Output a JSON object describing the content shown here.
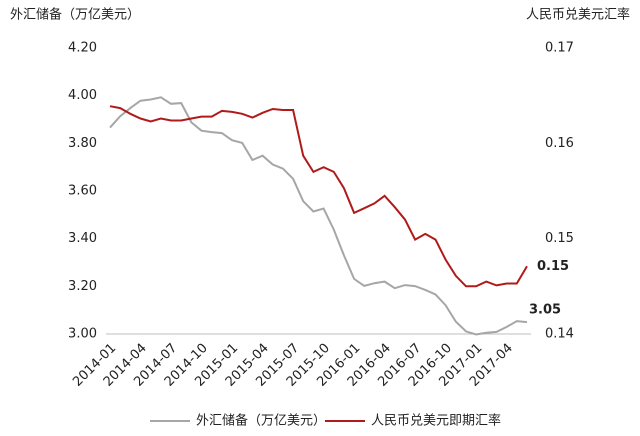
{
  "chart_data": {
    "type": "line",
    "y_label": "外汇储备（万亿美元）",
    "y2_label": "人民币兑美元汇率",
    "categories": [
      "2014-01",
      null,
      null,
      "2014-04",
      null,
      null,
      "2014-07",
      null,
      null,
      "2014-10",
      null,
      null,
      "2015-01",
      null,
      null,
      "2015-04",
      null,
      null,
      "2015-07",
      null,
      null,
      "2015-10",
      null,
      null,
      "2016-01",
      null,
      null,
      "2016-04",
      null,
      null,
      "2016-07",
      null,
      null,
      "2016-10",
      null,
      null,
      "2017-01",
      null,
      null,
      "2017-04",
      null,
      null
    ],
    "ylim": [
      3,
      4.2
    ],
    "yticks": [
      {
        "value": 3,
        "label": "3.00"
      },
      {
        "value": 3.2,
        "label": "3.20"
      },
      {
        "value": 3.4,
        "label": "3.40"
      },
      {
        "value": 3.6,
        "label": "3.60"
      },
      {
        "value": 3.8,
        "label": "3.80"
      },
      {
        "value": 4,
        "label": "4.00"
      },
      {
        "value": 4.2,
        "label": "4.20"
      }
    ],
    "y2lim": [
      0.14,
      0.17
    ],
    "y2ticks": [
      0.14,
      0.15,
      0.16,
      0.17
    ],
    "series": [
      {
        "name": "外汇储备（万亿美元）",
        "color": "#a6a6a6",
        "values": [
          3.866,
          3.914,
          3.948,
          3.979,
          3.984,
          3.993,
          3.966,
          3.969,
          3.888,
          3.853,
          3.847,
          3.843,
          3.813,
          3.802,
          3.73,
          3.748,
          3.711,
          3.694,
          3.651,
          3.557,
          3.514,
          3.526,
          3.438,
          3.33,
          3.231,
          3.202,
          3.213,
          3.22,
          3.192,
          3.205,
          3.201,
          3.185,
          3.166,
          3.121,
          3.052,
          3.011,
          2.998,
          3.005,
          3.009,
          3.03,
          3.054,
          3.05
        ]
      },
      {
        "name": "人民币兑美元即期汇率",
        "color": "#b01a1a",
        "axis": "y2",
        "values": [
          0.1639,
          0.1637,
          0.1631,
          0.1626,
          0.1623,
          0.1626,
          0.1624,
          0.1624,
          0.1626,
          0.1628,
          0.1628,
          0.1634,
          0.1633,
          0.1631,
          0.1627,
          0.1632,
          0.1636,
          0.1635,
          0.1635,
          0.1587,
          0.157,
          0.1575,
          0.157,
          0.1553,
          0.1527,
          0.1532,
          0.1537,
          0.1545,
          0.1533,
          0.152,
          0.1499,
          0.1505,
          0.1499,
          0.1478,
          0.1461,
          0.145,
          0.145,
          0.1455,
          0.1451,
          0.1453,
          0.1453,
          0.1471
        ],
        "value_labels": [
          null,
          null,
          null,
          null,
          null,
          null,
          null,
          null,
          null,
          null,
          null,
          null,
          null,
          null,
          null,
          null,
          null,
          null,
          null,
          null,
          null,
          null,
          null,
          null,
          null,
          null,
          null,
          null,
          null,
          null,
          null,
          null,
          null,
          null,
          null,
          null,
          null,
          null,
          null,
          null,
          null,
          "0.15"
        ]
      }
    ]
  }
}
